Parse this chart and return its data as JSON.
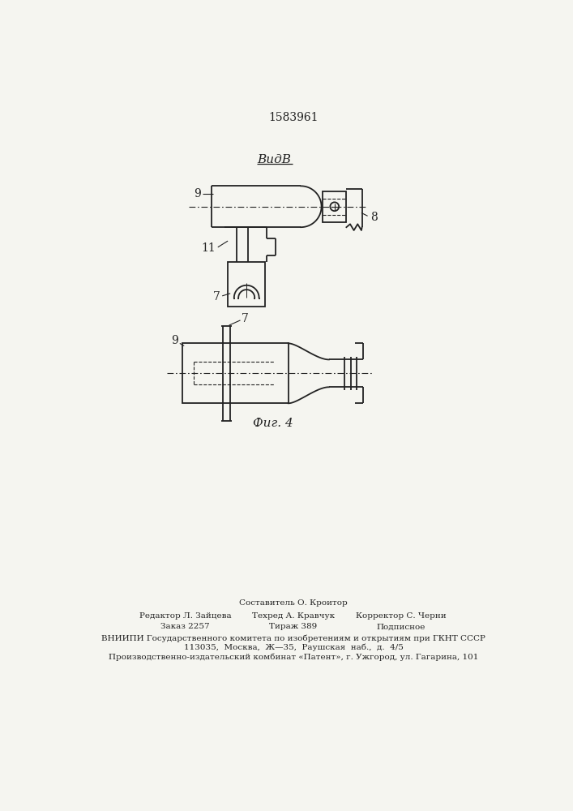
{
  "title": "1583961",
  "title_fontsize": 10,
  "background_color": "#f5f5f0",
  "line_color": "#222222",
  "vid_b_label": "ВидВ",
  "fig4_label": "Фиг. 4",
  "labels": {
    "9_top": "9",
    "11": "11",
    "7_top": "7",
    "8": "8",
    "9_bot": "9",
    "7_bot": "7"
  },
  "footer": {
    "row1_center": "Составитель О. Кроитор",
    "row2_left": "Редактор Л. Зайцева",
    "row2_center": "Техред А. Кравчук",
    "row2_right": "Корректор С. Черни",
    "row3_left": "Заказ 2257",
    "row3_center": "Тираж 389",
    "row3_right": "Подписное",
    "row4": "ВНИИПИ Государственного комитета по изобретениям и открытиям при ГКНТ СССР",
    "row5": "113035,  Москва,  Ж—35,  Раушская  наб.,  д.  4/5",
    "row6": "Производственно-издательский комбинат «Патент», г. Ужгород, ул. Гагарина, 101"
  }
}
